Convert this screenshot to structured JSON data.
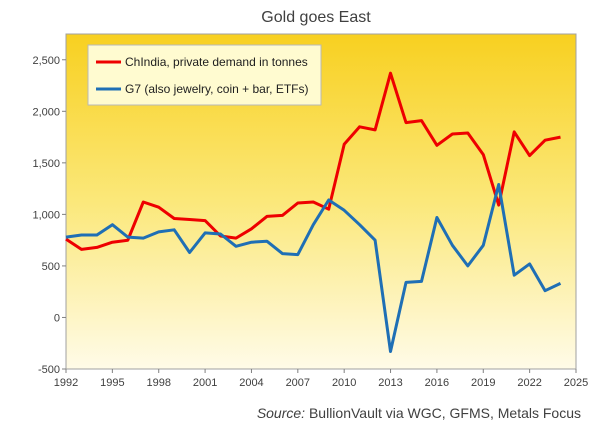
{
  "chart_data": {
    "type": "line",
    "title": "Gold goes East",
    "source_label": "Source:",
    "source_text": "BullionVault via  WGC, GFMS, Metals Focus",
    "xlim": [
      1992,
      2025
    ],
    "ylim": [
      -500,
      2750
    ],
    "x_ticks": [
      "1992",
      "1995",
      "1998",
      "2001",
      "2004",
      "2007",
      "2010",
      "2013",
      "2016",
      "2019",
      "2022",
      "2025"
    ],
    "y_ticks": [
      "-500",
      "0",
      "500",
      "1,000",
      "1,500",
      "2,000",
      "2,500"
    ],
    "legend_position": "top-left",
    "grid": false,
    "x": [
      1992,
      1993,
      1994,
      1995,
      1996,
      1997,
      1998,
      1999,
      2000,
      2001,
      2002,
      2003,
      2004,
      2005,
      2006,
      2007,
      2008,
      2009,
      2010,
      2011,
      2012,
      2013,
      2014,
      2015,
      2016,
      2017,
      2018,
      2019,
      2020,
      2021,
      2022,
      2023,
      2024
    ],
    "series": [
      {
        "name": "ChIndia, private demand in tonnes",
        "color": "#ee0000",
        "values": [
          760,
          660,
          680,
          730,
          750,
          1120,
          1070,
          960,
          950,
          940,
          790,
          770,
          860,
          980,
          990,
          1110,
          1120,
          1050,
          1680,
          1850,
          1820,
          2370,
          1890,
          1910,
          1670,
          1780,
          1790,
          1580,
          1090,
          1800,
          1570,
          1720,
          1750
        ]
      },
      {
        "name": "G7 (also jewelry, coin + bar, ETFs)",
        "color": "#1f6fb5",
        "values": [
          780,
          800,
          800,
          900,
          780,
          770,
          830,
          850,
          630,
          820,
          810,
          690,
          730,
          740,
          620,
          610,
          900,
          1140,
          1040,
          900,
          750,
          -330,
          340,
          350,
          970,
          700,
          500,
          700,
          1290,
          410,
          520,
          260,
          330
        ]
      }
    ]
  }
}
